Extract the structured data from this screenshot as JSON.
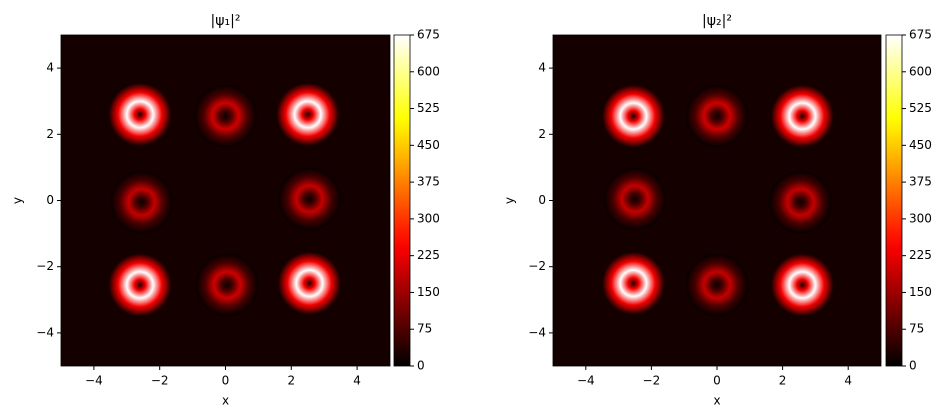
{
  "chart_data": [
    {
      "type": "heatmap",
      "title": "|ψ₁|²",
      "xlabel": "x",
      "ylabel": "y",
      "xlim": [
        -5,
        5
      ],
      "ylim": [
        -5,
        5
      ],
      "xticks": [
        {
          "value": -4,
          "label": "−4"
        },
        {
          "value": -2,
          "label": "−2"
        },
        0,
        2,
        4
      ],
      "yticks": [
        {
          "value": -4,
          "label": "−4"
        },
        {
          "value": -2,
          "label": "−2"
        },
        0,
        2,
        4
      ],
      "colormap": "hot",
      "clim": [
        0,
        675
      ],
      "cticks": [
        0,
        75,
        150,
        225,
        300,
        375,
        450,
        525,
        600,
        675
      ],
      "x": [
        -2.6,
        0,
        2.5,
        -2.55,
        2.55,
        -2.6,
        0.05,
        2.55
      ],
      "y": [
        2.6,
        2.55,
        2.6,
        -0.05,
        0.05,
        -2.55,
        -2.55,
        -2.5
      ],
      "values": [
        675,
        200,
        675,
        190,
        190,
        675,
        200,
        675
      ]
    },
    {
      "type": "heatmap",
      "title": "|ψ₂|²",
      "xlabel": "x",
      "ylabel": "y",
      "xlim": [
        -5,
        5
      ],
      "ylim": [
        -5,
        5
      ],
      "xticks": [
        {
          "value": -4,
          "label": "−4"
        },
        {
          "value": -2,
          "label": "−2"
        },
        0,
        2,
        4
      ],
      "yticks": [
        {
          "value": -4,
          "label": "−4"
        },
        {
          "value": -2,
          "label": "−2"
        },
        0,
        2,
        4
      ],
      "colormap": "hot",
      "clim": [
        0,
        675
      ],
      "cticks": [
        0,
        75,
        150,
        225,
        300,
        375,
        450,
        525,
        600,
        675
      ],
      "x": [
        -2.55,
        0,
        2.6,
        -2.5,
        2.55,
        -2.55,
        0,
        2.6
      ],
      "y": [
        2.55,
        2.55,
        2.55,
        0.05,
        -0.05,
        -2.5,
        -2.55,
        -2.55
      ],
      "values": [
        675,
        200,
        675,
        190,
        190,
        675,
        190,
        675
      ]
    }
  ]
}
